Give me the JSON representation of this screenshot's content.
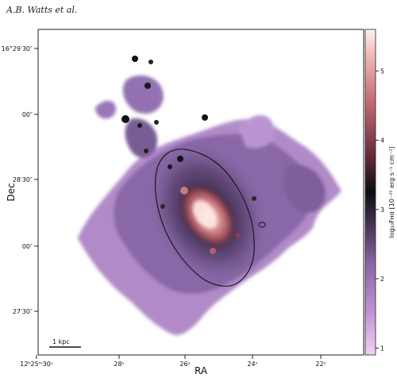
{
  "header": {
    "authors": "A.B. Watts et al."
  },
  "chart_data": {
    "type": "heatmap",
    "title": "",
    "xlabel": "RA",
    "ylabel": "Dec",
    "colorbar_label": "log₁₀Fʜα [10⁻²⁰ erg s⁻¹ cm⁻²]",
    "x_ticks": [
      "12ʰ25ᵐ30ˢ",
      "28ˢ",
      "26ˢ",
      "24ˢ",
      "22ˢ"
    ],
    "y_ticks": [
      "16°29′30″",
      "00″",
      "28′30″",
      "00″",
      "27′30″"
    ],
    "colorbar": {
      "range": [
        0.9,
        5.6
      ],
      "ticks": [
        "1",
        "2",
        "3",
        "4",
        "5"
      ]
    },
    "scalebar_label": "1 kpc",
    "colors": {
      "low": "#e9c3ef",
      "mid_low": "#8b63a5",
      "mid": "#111111",
      "mid_high": "#a4525d",
      "high": "#fbe9e6"
    }
  }
}
